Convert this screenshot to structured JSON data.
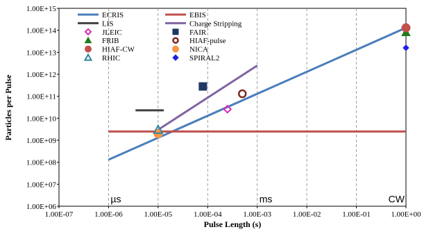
{
  "chart_data": {
    "type": "scatter",
    "xlabel": "Pulse Length (s)",
    "ylabel": "Particles per Pulse",
    "x_scale": "log",
    "y_scale": "log",
    "xlim": [
      1e-07,
      1
    ],
    "ylim": [
      1000000.0,
      1000000000000000.0
    ],
    "x_ticks": [
      {
        "v": 1e-07,
        "label": "1.00E-07"
      },
      {
        "v": 1e-06,
        "label": "1.00E-06"
      },
      {
        "v": 1e-05,
        "label": "1.00E-05"
      },
      {
        "v": 0.0001,
        "label": "1.00E-04"
      },
      {
        "v": 0.001,
        "label": "1.00E-03"
      },
      {
        "v": 0.01,
        "label": "1.00E-02"
      },
      {
        "v": 0.1,
        "label": "1.00E-01"
      },
      {
        "v": 1,
        "label": "1.00E+00"
      }
    ],
    "y_ticks": [
      {
        "v": 1000000.0,
        "label": "1.00E+06"
      },
      {
        "v": 10000000.0,
        "label": "1.00E+07"
      },
      {
        "v": 100000000.0,
        "label": "1.00E+08"
      },
      {
        "v": 1000000000.0,
        "label": "1.00E+09"
      },
      {
        "v": 10000000000.0,
        "label": "1.00E+10"
      },
      {
        "v": 100000000000.0,
        "label": "1.00E+11"
      },
      {
        "v": 1000000000000.0,
        "label": "1.00E+12"
      },
      {
        "v": 10000000000000.0,
        "label": "1.00E+13"
      },
      {
        "v": 100000000000000.0,
        "label": "1.00E+14"
      },
      {
        "v": 1000000000000000.0,
        "label": "1.00E+15"
      }
    ],
    "grid": {
      "vertical": "dashed",
      "horizontal": "none"
    },
    "annotations": [
      {
        "text": "µs",
        "x": 1e-06,
        "y": 1500000.0
      },
      {
        "text": "ms",
        "x": 0.001,
        "y": 1500000.0
      },
      {
        "text": "CW",
        "x": 1,
        "y": 1500000.0
      }
    ],
    "lines": [
      {
        "name": "ECRIS",
        "color": "#4a7ebb",
        "points": [
          [
            1e-06,
            130000000.0
          ],
          [
            1,
            130000000000000.0
          ]
        ]
      },
      {
        "name": "EBIS",
        "color": "#c0504d",
        "points": [
          [
            1e-06,
            2500000000.0
          ],
          [
            1,
            2500000000.0
          ]
        ]
      },
      {
        "name": "LIS",
        "color": "#404040",
        "points": [
          [
            3.5e-06,
            23000000000.0
          ],
          [
            1.3e-05,
            23000000000.0
          ]
        ]
      },
      {
        "name": "Charge Stripping",
        "color": "#8064a2",
        "points": [
          [
            1e-05,
            3000000000.0
          ],
          [
            0.001,
            2500000000000.0
          ]
        ]
      }
    ],
    "points": [
      {
        "name": "JLEIC",
        "marker": "diamond-open",
        "color": "#d62ab4",
        "x": 0.00025,
        "y": 26000000000.0
      },
      {
        "name": "FAIR",
        "marker": "square",
        "color": "#1f3864",
        "x": 8e-05,
        "y": 280000000000.0
      },
      {
        "name": "FRIB",
        "marker": "triangle",
        "color": "#1e7b1e",
        "x": 1,
        "y": 80000000000000.0
      },
      {
        "name": "HIAF-pulse",
        "marker": "circle-open",
        "color": "#7b2a22",
        "x": 0.0005,
        "y": 130000000000.0
      },
      {
        "name": "HIAF-CW",
        "marker": "circle",
        "color": "#c0504d",
        "x": 1,
        "y": 130000000000000.0
      },
      {
        "name": "NICA",
        "marker": "circle",
        "color": "#f79646",
        "x": 1e-05,
        "y": 2000000000.0
      },
      {
        "name": "RHIC",
        "marker": "triangle-open",
        "color": "#31859c",
        "x": 1e-05,
        "y": 3000000000.0
      },
      {
        "name": "SPIRAL2",
        "marker": "diamond",
        "color": "#1f1fe0",
        "x": 1,
        "y": 16000000000000.0
      }
    ],
    "legend": [
      {
        "label": "ECRIS",
        "type": "line",
        "color": "#4a7ebb"
      },
      {
        "label": "EBIS",
        "type": "line",
        "color": "#c0504d"
      },
      {
        "label": "LIS",
        "type": "line",
        "color": "#404040"
      },
      {
        "label": "Charge Stripping",
        "type": "line",
        "color": "#8064a2"
      },
      {
        "label": "JLEIC",
        "type": "diamond-open",
        "color": "#d62ab4"
      },
      {
        "label": "FAIR",
        "type": "square",
        "color": "#1f3864"
      },
      {
        "label": "FRIB",
        "type": "triangle",
        "color": "#1e7b1e"
      },
      {
        "label": "HIAF-pulse",
        "type": "circle-open",
        "color": "#7b2a22"
      },
      {
        "label": "HIAF-CW",
        "type": "circle",
        "color": "#c0504d"
      },
      {
        "label": "NICA",
        "type": "circle",
        "color": "#f79646"
      },
      {
        "label": "RHIC",
        "type": "triangle-open",
        "color": "#31859c"
      },
      {
        "label": "SPIRAL2",
        "type": "diamond",
        "color": "#1f1fe0"
      }
    ],
    "legend_position": "top-left"
  }
}
